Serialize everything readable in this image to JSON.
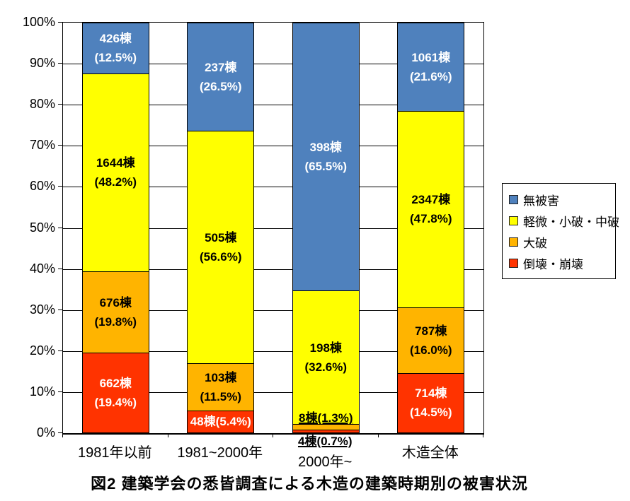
{
  "caption": "図2  建築学会の悉皆調査による木造の建築時期別の被害状況",
  "chart_data": {
    "type": "bar",
    "variant": "stacked-percent-column",
    "title": "図2  建築学会の悉皆調査による木造の建築時期別の被害状況",
    "categories": [
      "1981年以前",
      "1981~2000年",
      "2000年~",
      "木造全体"
    ],
    "unit_suffix": "棟",
    "series": [
      {
        "name": "無被害",
        "color": "#4F81BD",
        "label_text_color": "#FFFFFF",
        "counts": [
          426,
          237,
          398,
          1061
        ],
        "pct": [
          12.5,
          26.5,
          65.5,
          21.6
        ]
      },
      {
        "name": "軽微・小破・中破",
        "color": "#FFFF00",
        "label_text_color": "#000000",
        "counts": [
          1644,
          505,
          198,
          2347
        ],
        "pct": [
          48.2,
          56.6,
          32.6,
          47.8
        ]
      },
      {
        "name": "大破",
        "color": "#FFB400",
        "label_text_color": "#000000",
        "counts": [
          676,
          103,
          8,
          787
        ],
        "pct": [
          19.8,
          11.5,
          1.3,
          16.0
        ]
      },
      {
        "name": "倒壊・崩壊",
        "color": "#FF3300",
        "label_text_color": "#FFFFFF",
        "counts": [
          662,
          48,
          4,
          714
        ],
        "pct": [
          19.4,
          5.4,
          0.7,
          14.5
        ]
      }
    ],
    "y_ticks": [
      "100%",
      "90%",
      "80%",
      "70%",
      "60%",
      "50%",
      "40%",
      "30%",
      "20%",
      "10%",
      "0%"
    ],
    "ylim": [
      0,
      100
    ],
    "grid": {
      "horizontal": true,
      "interval_pct": 10
    },
    "legend_position": "right",
    "label_overrides": {
      "1": {
        "3": {
          "single_line": true
        }
      },
      "2": {
        "2": {
          "placement": "above-segment",
          "single_line": true,
          "underline": true
        },
        "3": {
          "placement": "below-axis",
          "single_line": true,
          "underline": true
        }
      }
    }
  }
}
